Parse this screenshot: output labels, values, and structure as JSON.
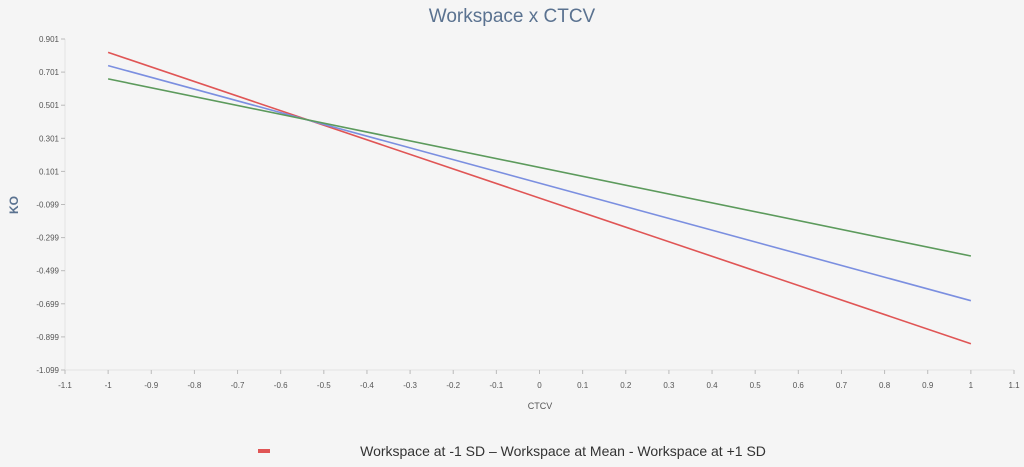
{
  "chart_data": {
    "type": "line",
    "title": "Workspace x CTCV",
    "xlabel": "CTCV",
    "ylabel": "KO",
    "xlim": [
      -1.1,
      1.1
    ],
    "ylim": [
      -1.099,
      0.901
    ],
    "x_ticks": [
      "-1.1",
      "-1",
      "-0.9",
      "-0.8",
      "-0.7",
      "-0.6",
      "-0.5",
      "-0.4",
      "-0.3",
      "-0.2",
      "-0.1",
      "0",
      "0.1",
      "0.2",
      "0.3",
      "0.4",
      "0.5",
      "0.6",
      "0.7",
      "0.8",
      "0.9",
      "1",
      "1.1"
    ],
    "y_ticks": [
      "0.901",
      "0.701",
      "0.501",
      "0.301",
      "0.101",
      "-0.099",
      "-0.299",
      "-0.499",
      "-0.699",
      "-0.899",
      "-1.099"
    ],
    "grid": false,
    "legend_text": "Workspace at -1 SD – Workspace at Mean - Workspace at +1 SD",
    "legend_position": "bottom",
    "series": [
      {
        "color": "#e05555",
        "x": [
          -1,
          1
        ],
        "y": [
          0.82,
          -0.94
        ]
      },
      {
        "color": "#7b8fe0",
        "x": [
          -1,
          1
        ],
        "y": [
          0.74,
          -0.68
        ]
      },
      {
        "color": "#5c9a5c",
        "x": [
          -1,
          1
        ],
        "y": [
          0.66,
          -0.41
        ]
      }
    ]
  }
}
